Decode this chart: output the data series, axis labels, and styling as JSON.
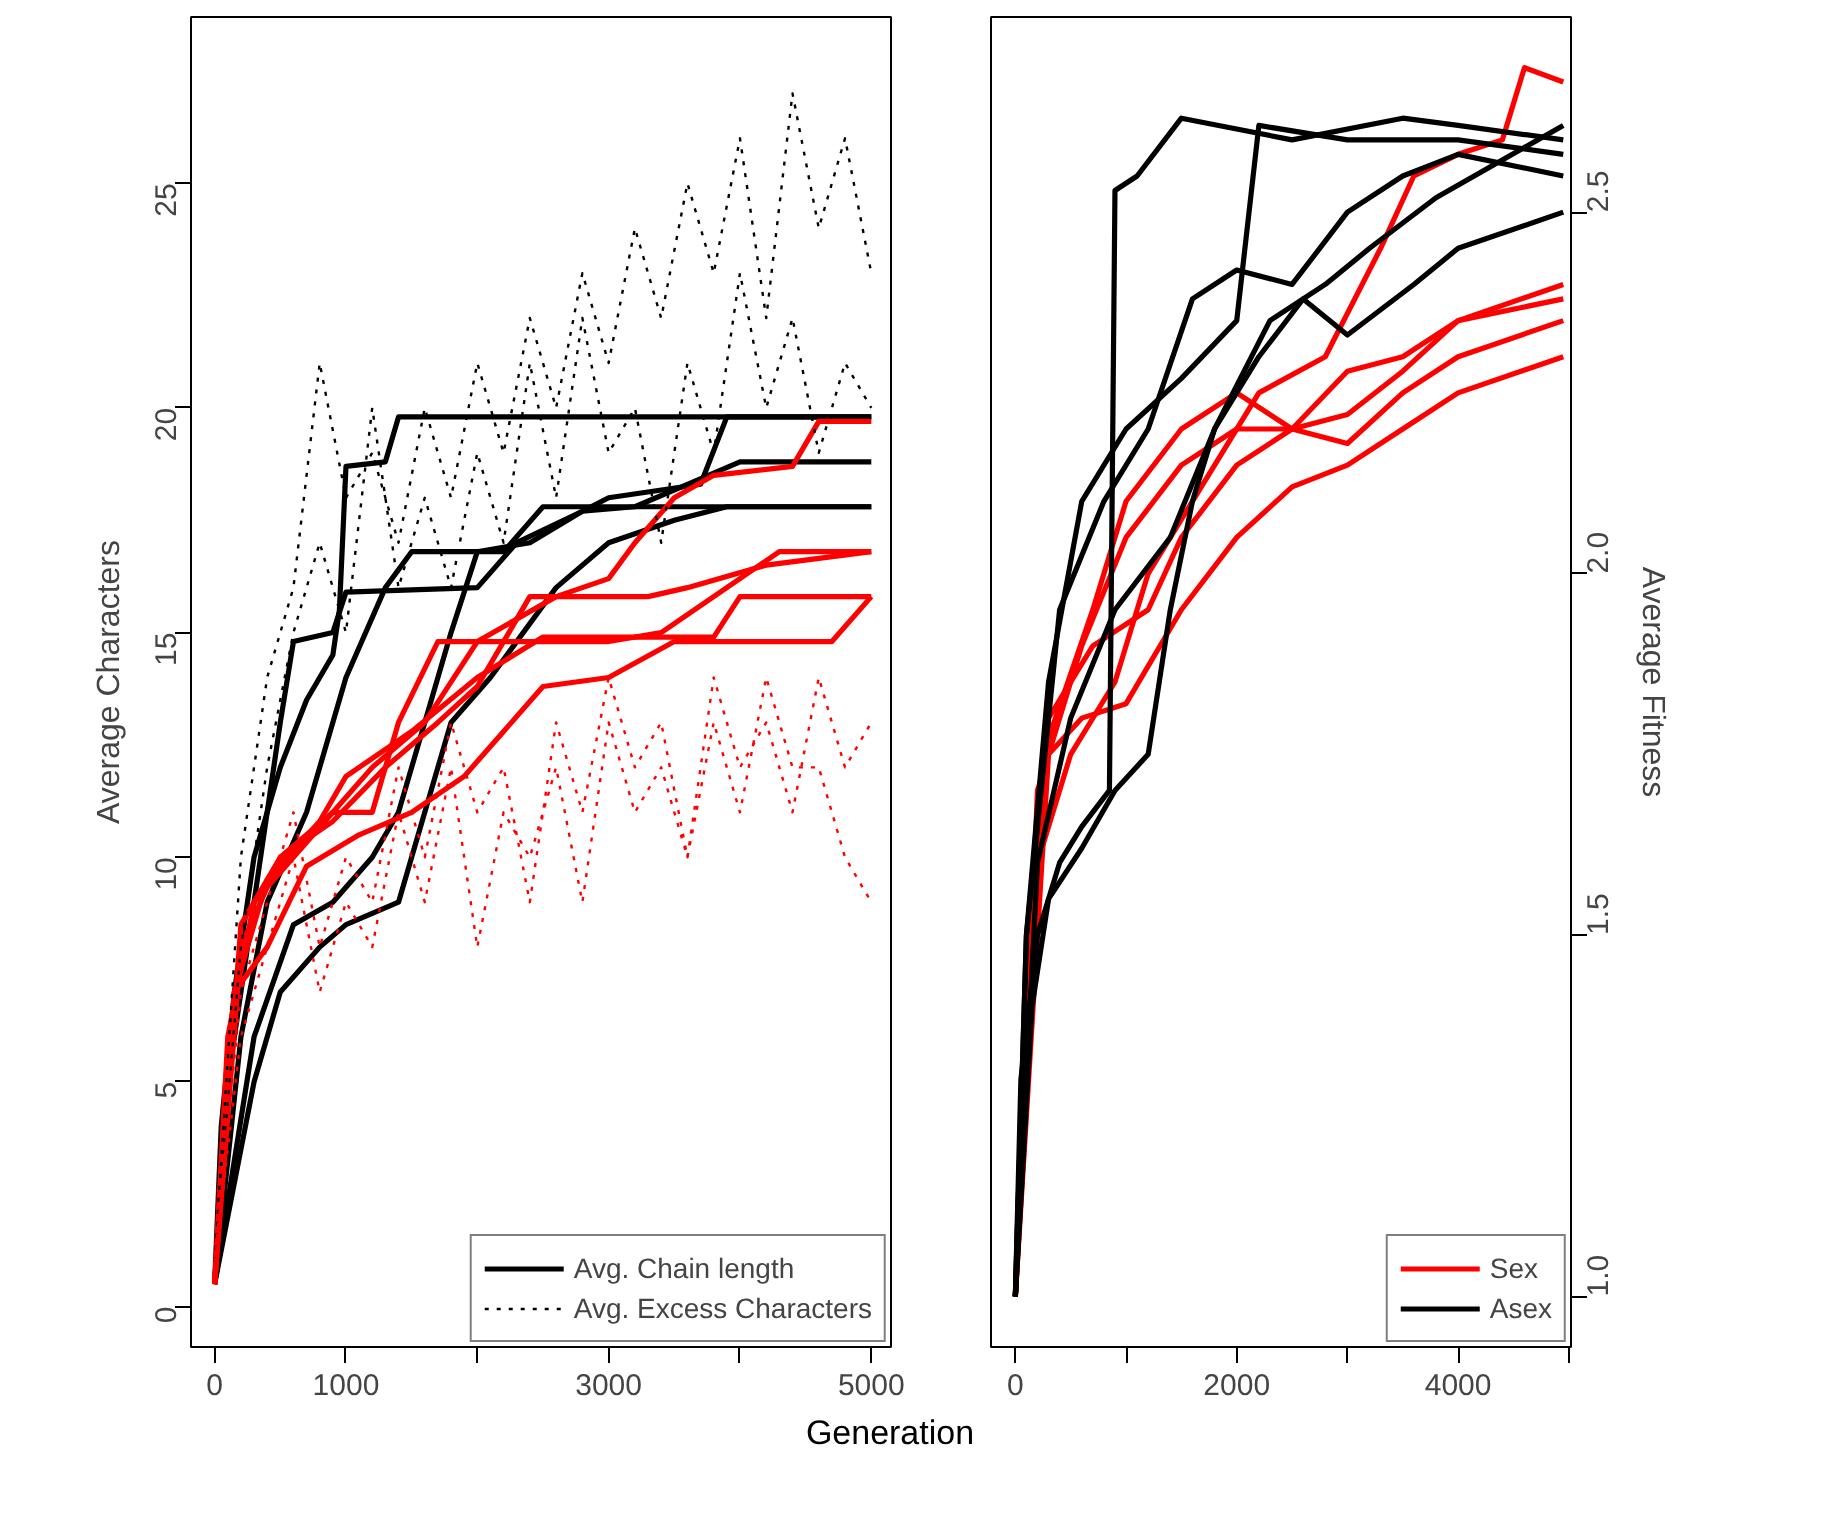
{
  "chart_data": [
    {
      "type": "line",
      "xlabel": "Generation",
      "ylabel": "Average Characters",
      "xlim": [
        -180,
        5150
      ],
      "ylim": [
        -0.9,
        28.7
      ],
      "xticks": [
        0,
        1000,
        {
          "value": 2000,
          "label": null
        },
        3000,
        {
          "value": 4000,
          "label": null
        },
        5000
      ],
      "yticks": [
        0,
        5,
        10,
        15,
        20,
        25
      ],
      "legend": "bottom right",
      "grid": false,
      "series": [
        {
          "name": "Avg. Chain length",
          "color": "#000000",
          "line_style": "solid",
          "x": [
            0,
            50,
            150,
            300,
            500,
            700,
            900,
            950,
            1000,
            1300,
            1400,
            5000
          ],
          "values": [
            0.5,
            4,
            7,
            10,
            12,
            13.5,
            14.5,
            15.5,
            18.7,
            18.8,
            19.8,
            19.8
          ]
        },
        {
          "color": "#000000",
          "line_style": "solid",
          "x": [
            0,
            100,
            300,
            500,
            600,
            900,
            1000,
            2000,
            2300,
            2800,
            3000,
            3700,
            3900,
            5000
          ],
          "values": [
            0.5,
            5,
            9,
            13,
            14.8,
            15,
            15.9,
            16,
            17,
            17.7,
            18,
            18.3,
            19.8,
            19.8
          ]
        },
        {
          "color": "#000000",
          "line_style": "solid",
          "x": [
            0,
            200,
            400,
            700,
            1000,
            1300,
            1500,
            2200,
            2500,
            5000
          ],
          "values": [
            0.5,
            6,
            9,
            11,
            14,
            16,
            16.8,
            16.8,
            17.8,
            17.8
          ]
        },
        {
          "color": "#000000",
          "line_style": "solid",
          "x": [
            0,
            300,
            600,
            900,
            1200,
            1400,
            1600,
            1800,
            2000,
            2400,
            2800,
            3200,
            3600,
            4000,
            5000
          ],
          "values": [
            0.5,
            6,
            8.5,
            9,
            10,
            11,
            13,
            15,
            16.8,
            17,
            17.7,
            17.8,
            18.3,
            18.8,
            18.8
          ]
        },
        {
          "color": "#000000",
          "line_style": "solid",
          "x": [
            0,
            300,
            500,
            800,
            1000,
            1400,
            1600,
            1800,
            2100,
            2600,
            3000,
            3500,
            3900,
            5000
          ],
          "values": [
            0.5,
            5,
            7,
            8,
            8.5,
            9,
            11,
            13,
            14,
            16,
            17,
            17.5,
            17.8,
            17.8
          ]
        },
        {
          "color": "#ff0000",
          "line_style": "solid",
          "x": [
            0,
            100,
            300,
            600,
            900,
            1200,
            1600,
            2000,
            2600,
            3000,
            3200,
            3500,
            3800,
            4400,
            4600,
            5000
          ],
          "values": [
            0.5,
            6,
            9,
            10,
            11,
            12,
            13,
            14.8,
            15.8,
            16.2,
            17,
            18,
            18.5,
            18.7,
            19.7,
            19.7
          ]
        },
        {
          "color": "#ff0000",
          "line_style": "solid",
          "x": [
            0,
            150,
            400,
            800,
            1000,
            1500,
            2000,
            2500,
            3800,
            4000,
            5000
          ],
          "values": [
            0.5,
            7,
            9.5,
            10.8,
            11.8,
            12.8,
            14,
            14.9,
            14.9,
            15.8,
            15.8
          ]
        },
        {
          "color": "#ff0000",
          "line_style": "solid",
          "x": [
            0,
            200,
            500,
            900,
            1200,
            1400,
            1700,
            3000,
            3400,
            3800,
            4300,
            5000
          ],
          "values": [
            0.5,
            8,
            10,
            11,
            11,
            13,
            14.8,
            14.8,
            15,
            15.8,
            16.8,
            16.8
          ]
        },
        {
          "color": "#ff0000",
          "line_style": "solid",
          "x": [
            0,
            150,
            400,
            700,
            1100,
            1500,
            1900,
            2200,
            2500,
            3000,
            3500,
            4700,
            5000
          ],
          "values": [
            0.5,
            7,
            8,
            9.8,
            10.5,
            11,
            11.8,
            12.8,
            13.8,
            14,
            14.8,
            14.8,
            15.8
          ]
        },
        {
          "color": "#ff0000",
          "line_style": "solid",
          "x": [
            0,
            200,
            500,
            900,
            1300,
            1700,
            2000,
            2400,
            3300,
            3600,
            4200,
            5000
          ],
          "values": [
            0.5,
            8.5,
            10,
            10.8,
            12,
            13,
            13.8,
            15.8,
            15.8,
            16,
            16.5,
            16.8
          ]
        },
        {
          "name": "Avg. Excess Characters",
          "color": "#000000",
          "line_style": "dashed",
          "x": [
            0,
            200,
            400,
            600,
            800,
            1000,
            1200,
            1400,
            1600,
            1800,
            2000,
            2200,
            2400,
            2600,
            2800,
            3000,
            3200,
            3400,
            3600,
            3800,
            4000,
            4200,
            4400,
            4600,
            4800,
            5000
          ],
          "values": [
            1,
            10,
            14,
            16,
            21,
            18,
            19,
            17,
            20,
            18,
            21,
            19,
            22,
            20,
            23,
            21,
            24,
            22,
            25,
            23,
            26,
            22,
            27,
            24,
            26,
            23
          ]
        },
        {
          "color": "#000000",
          "line_style": "dashed",
          "x": [
            0,
            200,
            400,
            600,
            800,
            1000,
            1200,
            1400,
            1600,
            1800,
            2000,
            2200,
            2400,
            2600,
            2800,
            3000,
            3200,
            3400,
            3600,
            3800,
            4000,
            4200,
            4400,
            4600,
            4800,
            5000
          ],
          "values": [
            1,
            8,
            12,
            15,
            17,
            15,
            20,
            16,
            18,
            16,
            19,
            17,
            21,
            18,
            22,
            19,
            20,
            17,
            21,
            19,
            23,
            20,
            22,
            19,
            21,
            20
          ]
        },
        {
          "color": "#ff0000",
          "line_style": "dashed",
          "x": [
            0,
            200,
            400,
            600,
            800,
            1000,
            1200,
            1400,
            1600,
            1800,
            2000,
            2200,
            2400,
            2600,
            2800,
            3000,
            3200,
            3400,
            3600,
            3800,
            4000,
            4200,
            4400,
            4600,
            4800,
            5000
          ],
          "values": [
            1,
            7,
            9,
            11,
            8,
            10,
            9,
            12,
            10,
            13,
            11,
            12,
            9,
            13,
            11,
            14,
            12,
            13,
            10,
            14,
            12,
            13,
            11,
            14,
            12,
            13
          ]
        },
        {
          "color": "#ff0000",
          "line_style": "dashed",
          "x": [
            0,
            200,
            400,
            600,
            800,
            1000,
            1200,
            1400,
            1600,
            1800,
            2000,
            2200,
            2400,
            2600,
            2800,
            3000,
            3200,
            3400,
            3600,
            3800,
            4000,
            4200,
            4400,
            4600,
            4800,
            5000
          ],
          "values": [
            1,
            6,
            8,
            10,
            7,
            9,
            8,
            11,
            9,
            12,
            8,
            11,
            10,
            12,
            9,
            13,
            11,
            12,
            10,
            13,
            11,
            14,
            12,
            12,
            10,
            9
          ]
        }
      ]
    },
    {
      "type": "line",
      "y2label": "Average Fitness",
      "xlim": [
        -220,
        5020
      ],
      "y2lim": [
        0.93,
        2.77
      ],
      "xticks": [
        0,
        {
          "value": 1000,
          "label": null
        },
        2000,
        {
          "value": 3000,
          "label": null
        },
        4000,
        {
          "value": 5000,
          "label": null
        }
      ],
      "y2ticks": [
        {
          "value": 1,
          "label": "1.0"
        },
        1.5,
        {
          "value": 2,
          "label": "2.0"
        },
        2.5
      ],
      "legend": "bottom right",
      "grid": false,
      "series": [
        {
          "name": "Sex",
          "color": "#ff0000",
          "axis": "y2",
          "x": [
            0,
            200,
            500,
            900,
            1200,
            1600,
            2200,
            2800,
            3300,
            3600,
            4000,
            4400,
            4600,
            4950
          ],
          "values": [
            1,
            1.6,
            1.75,
            1.85,
            2.0,
            2.1,
            2.25,
            2.3,
            2.45,
            2.55,
            2.58,
            2.6,
            2.7,
            2.68
          ]
        },
        {
          "color": "#ff0000",
          "axis": "y2",
          "x": [
            0,
            300,
            700,
            1200,
            1500,
            2000,
            2500,
            3000,
            3500,
            4000,
            4950
          ],
          "values": [
            1,
            1.8,
            1.9,
            1.95,
            2.05,
            2.15,
            2.2,
            2.28,
            2.3,
            2.35,
            2.4
          ]
        },
        {
          "color": "#ff0000",
          "axis": "y2",
          "x": [
            0,
            300,
            600,
            1000,
            1500,
            2000,
            2500,
            3000,
            3500,
            4000,
            4950
          ],
          "values": [
            1,
            1.75,
            1.8,
            1.82,
            1.95,
            2.05,
            2.12,
            2.15,
            2.2,
            2.25,
            2.3
          ]
        },
        {
          "color": "#ff0000",
          "axis": "y2",
          "x": [
            0,
            200,
            600,
            1000,
            1500,
            2000,
            2500,
            3000,
            3500,
            4000,
            4950
          ],
          "values": [
            1,
            1.7,
            1.9,
            2.05,
            2.15,
            2.2,
            2.2,
            2.18,
            2.25,
            2.3,
            2.35
          ]
        },
        {
          "color": "#ff0000",
          "axis": "y2",
          "x": [
            0,
            250,
            700,
            1000,
            1500,
            2000,
            2500,
            3000,
            3500,
            4000,
            4950
          ],
          "values": [
            1,
            1.75,
            1.95,
            2.1,
            2.2,
            2.25,
            2.2,
            2.22,
            2.28,
            2.35,
            2.38
          ]
        },
        {
          "name": "Asex",
          "color": "#000000",
          "axis": "y2",
          "x": [
            0,
            50,
            200,
            400,
            600,
            850,
            900,
            1100,
            1500,
            2500,
            3500,
            4000,
            4950
          ],
          "values": [
            1,
            1.3,
            1.5,
            1.6,
            1.65,
            1.7,
            2.53,
            2.55,
            2.63,
            2.6,
            2.63,
            2.62,
            2.6
          ]
        },
        {
          "color": "#000000",
          "axis": "y2",
          "x": [
            0,
            100,
            300,
            600,
            1000,
            1500,
            2000,
            2200,
            3000,
            4000,
            4950
          ],
          "values": [
            1,
            1.5,
            1.85,
            2.1,
            2.2,
            2.27,
            2.35,
            2.62,
            2.6,
            2.6,
            2.58
          ]
        },
        {
          "color": "#000000",
          "axis": "y2",
          "x": [
            0,
            150,
            300,
            600,
            900,
            1200,
            1400,
            1600,
            1800,
            2200,
            2600,
            3000,
            3600,
            4000,
            4950
          ],
          "values": [
            1,
            1.4,
            1.55,
            1.62,
            1.7,
            1.75,
            1.95,
            2.1,
            2.2,
            2.3,
            2.38,
            2.33,
            2.4,
            2.45,
            2.5
          ]
        },
        {
          "color": "#000000",
          "axis": "y2",
          "x": [
            0,
            100,
            400,
            800,
            1200,
            1600,
            2000,
            2500,
            3000,
            3500,
            4000,
            4950
          ],
          "values": [
            1,
            1.5,
            1.95,
            2.1,
            2.2,
            2.38,
            2.42,
            2.4,
            2.5,
            2.55,
            2.58,
            2.55
          ]
        },
        {
          "color": "#000000",
          "axis": "y2",
          "x": [
            0,
            200,
            500,
            900,
            1400,
            1800,
            2300,
            2800,
            3200,
            3800,
            4950
          ],
          "values": [
            1,
            1.6,
            1.8,
            1.95,
            2.05,
            2.2,
            2.35,
            2.4,
            2.45,
            2.52,
            2.62
          ]
        }
      ]
    }
  ]
}
